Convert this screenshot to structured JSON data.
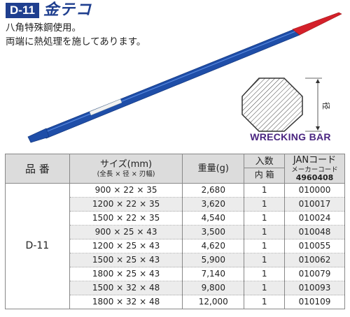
{
  "header": {
    "code": "D-11",
    "title": "金テコ"
  },
  "description": {
    "line1": "八角特殊鋼使用。",
    "line2": "両端に熱処理を施してあります。"
  },
  "diagram": {
    "dimension_label": "径",
    "caption": "WRECKING BAR"
  },
  "table": {
    "headers": {
      "model": "品 番",
      "size": "サイズ(mm)",
      "size_sub": "(全長 × 径 × 刃幅)",
      "weight": "重量(g)",
      "qty": "入数",
      "qty_sub": "内 箱",
      "jan": "JANコード",
      "maker_code": "メーカーコード",
      "jan_prefix": "4960408"
    },
    "model": "D-11",
    "rows": [
      {
        "size": "900 × 22 × 35",
        "weight": "2,680",
        "qty": "1",
        "jan": "010000"
      },
      {
        "size": "1200 × 22 × 35",
        "weight": "3,620",
        "qty": "1",
        "jan": "010017"
      },
      {
        "size": "1500 × 22 × 35",
        "weight": "4,540",
        "qty": "1",
        "jan": "010024"
      },
      {
        "size": "900 × 25 × 43",
        "weight": "3,500",
        "qty": "1",
        "jan": "010048"
      },
      {
        "size": "1200 × 25 × 43",
        "weight": "4,620",
        "qty": "1",
        "jan": "010055"
      },
      {
        "size": "1500 × 25 × 43",
        "weight": "5,900",
        "qty": "1",
        "jan": "010062"
      },
      {
        "size": "1800 × 25 × 43",
        "weight": "7,140",
        "qty": "1",
        "jan": "010079"
      },
      {
        "size": "1500 × 32 × 48",
        "weight": "9,800",
        "qty": "1",
        "jan": "010093"
      },
      {
        "size": "1800 × 32 × 48",
        "weight": "12,000",
        "qty": "1",
        "jan": "010109"
      }
    ]
  },
  "colors": {
    "bar_blue": "#1f4ea8",
    "tip_red": "#d4202a",
    "badge": "#1f3f8f",
    "caption": "#4a2580"
  }
}
